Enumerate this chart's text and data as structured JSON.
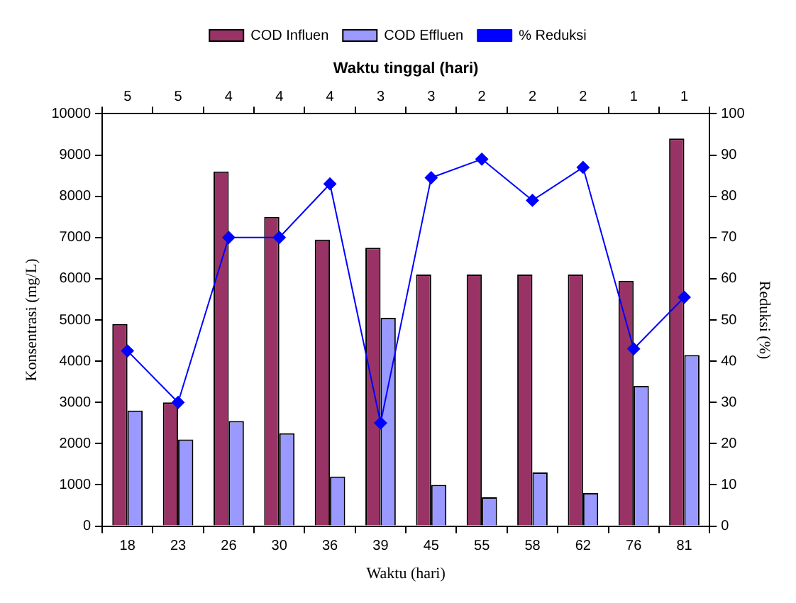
{
  "chart_data": {
    "type": "bar",
    "categories": [
      "18",
      "23",
      "26",
      "30",
      "36",
      "39",
      "45",
      "55",
      "58",
      "62",
      "76",
      "81"
    ],
    "annotations": [
      "5",
      "5",
      "4",
      "4",
      "4",
      "3",
      "3",
      "2",
      "2",
      "2",
      "1",
      "1"
    ],
    "x2label": "Waktu tinggal (hari)",
    "xlabel": "Waktu (hari)",
    "ylabel": "Konsentrasi (mg/L)",
    "y2label": "Reduksi (%)",
    "ylim": [
      0,
      10000
    ],
    "yticks": [
      0,
      1000,
      2000,
      3000,
      4000,
      5000,
      6000,
      7000,
      8000,
      9000,
      10000
    ],
    "y2lim": [
      0,
      100
    ],
    "y2ticks": [
      0,
      10,
      20,
      30,
      40,
      50,
      60,
      70,
      80,
      90,
      100
    ],
    "grid": false,
    "legend": "top",
    "series": [
      {
        "name": "COD Influen",
        "color": "#993366",
        "values": [
          4900,
          3000,
          8600,
          7500,
          6950,
          6750,
          6100,
          6100,
          6100,
          6100,
          5950,
          9400
        ]
      },
      {
        "name": "COD Effluen",
        "color": "#9999ff",
        "values": [
          2800,
          2100,
          2550,
          2250,
          1200,
          5050,
          1000,
          700,
          1300,
          800,
          3400,
          4150
        ]
      },
      {
        "name": "% Reduksi",
        "type": "line",
        "axis": "y2",
        "color": "#0000ff",
        "marker": "diamond",
        "line_style": "solid",
        "values": [
          42.5,
          30,
          70,
          70,
          83,
          25,
          84.5,
          89,
          79,
          87,
          43,
          55.5
        ]
      }
    ]
  }
}
